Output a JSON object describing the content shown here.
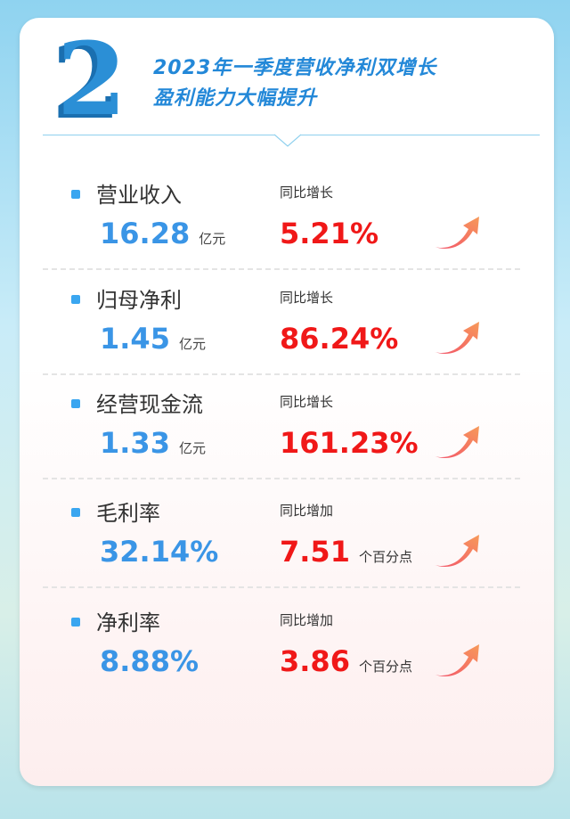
{
  "header": {
    "number": "2",
    "title_line1": "2023年一季度营收净利双增长",
    "title_line2": "盈利能力大幅提升"
  },
  "metrics": [
    {
      "label": "营业收入",
      "value": "16.28",
      "unit": "亿元",
      "compare_label": "同比增长",
      "change": "5.21%",
      "change_unit": ""
    },
    {
      "label": "归母净利",
      "value": "1.45",
      "unit": "亿元",
      "compare_label": "同比增长",
      "change": "86.24%",
      "change_unit": ""
    },
    {
      "label": "经营现金流",
      "value": "1.33",
      "unit": "亿元",
      "compare_label": "同比增长",
      "change": "161.23%",
      "change_unit": ""
    },
    {
      "label": "毛利率",
      "value": "32.14%",
      "unit": "",
      "compare_label": "同比增加",
      "change": "7.51",
      "change_unit": "个百分点"
    },
    {
      "label": "净利率",
      "value": "8.88%",
      "unit": "",
      "compare_label": "同比增加",
      "change": "3.86",
      "change_unit": "个百分点"
    }
  ],
  "colors": {
    "accent": "#2388d8",
    "value": "#3a95e6",
    "change": "#f01818"
  },
  "icons": {
    "bullet": "square-bullet",
    "trend": "arrow-up-right-icon"
  }
}
